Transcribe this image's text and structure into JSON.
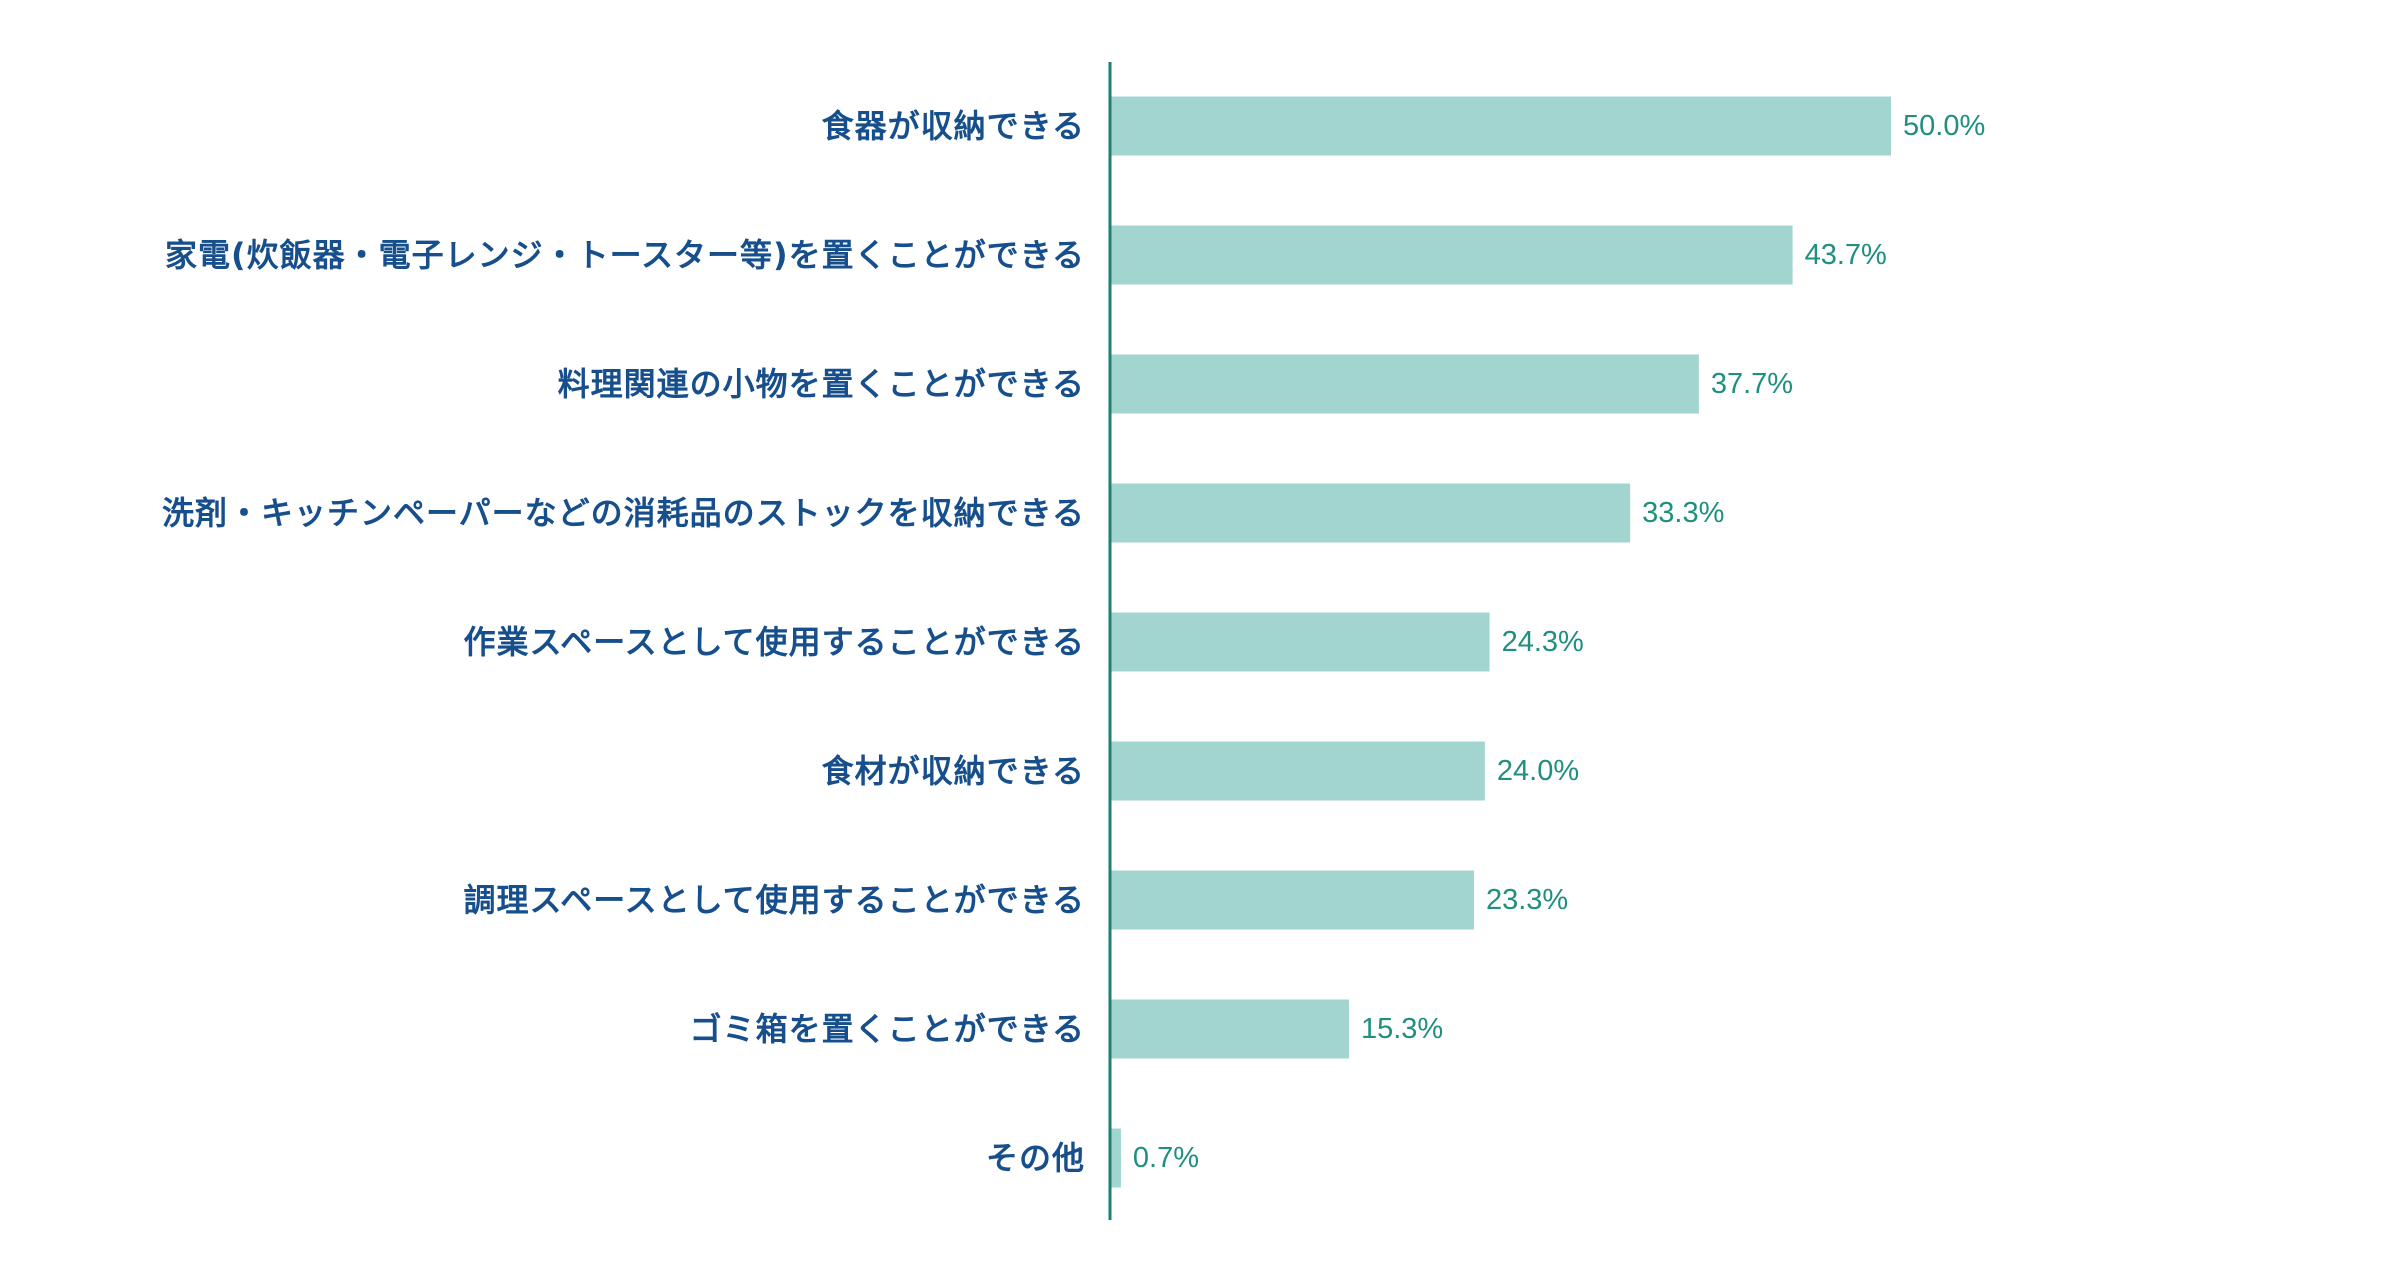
{
  "chart_data": {
    "type": "bar",
    "orientation": "horizontal",
    "title": "",
    "xlabel": "",
    "ylabel": "",
    "categories": [
      "食器が収納できる",
      "家電(炊飯器・電子レンジ・トースター等)を置くことができる",
      "料理関連の小物を置くことができる",
      "洗剤・キッチンペーパーなどの消耗品のストックを収納できる",
      "作業スペースとして使用することができる",
      "食材が収納できる",
      "調理スペースとして使用することができる",
      "ゴミ箱を置くことができる",
      "その他"
    ],
    "values": [
      50.0,
      43.7,
      37.7,
      33.3,
      24.3,
      24.0,
      23.3,
      15.3,
      0.7
    ],
    "value_labels": [
      "50.0%",
      "43.7%",
      "37.7%",
      "33.3%",
      "24.3%",
      "24.0%",
      "23.3%",
      "15.3%",
      "0.7%"
    ],
    "xlim": [
      0,
      100
    ],
    "unit": "%",
    "grid": false,
    "legend": "none",
    "colors": {
      "bar": "#a3d5d0",
      "axis": "#1f7f73",
      "category_text": "#164f8c",
      "value_text": "#1f8f7f"
    }
  }
}
